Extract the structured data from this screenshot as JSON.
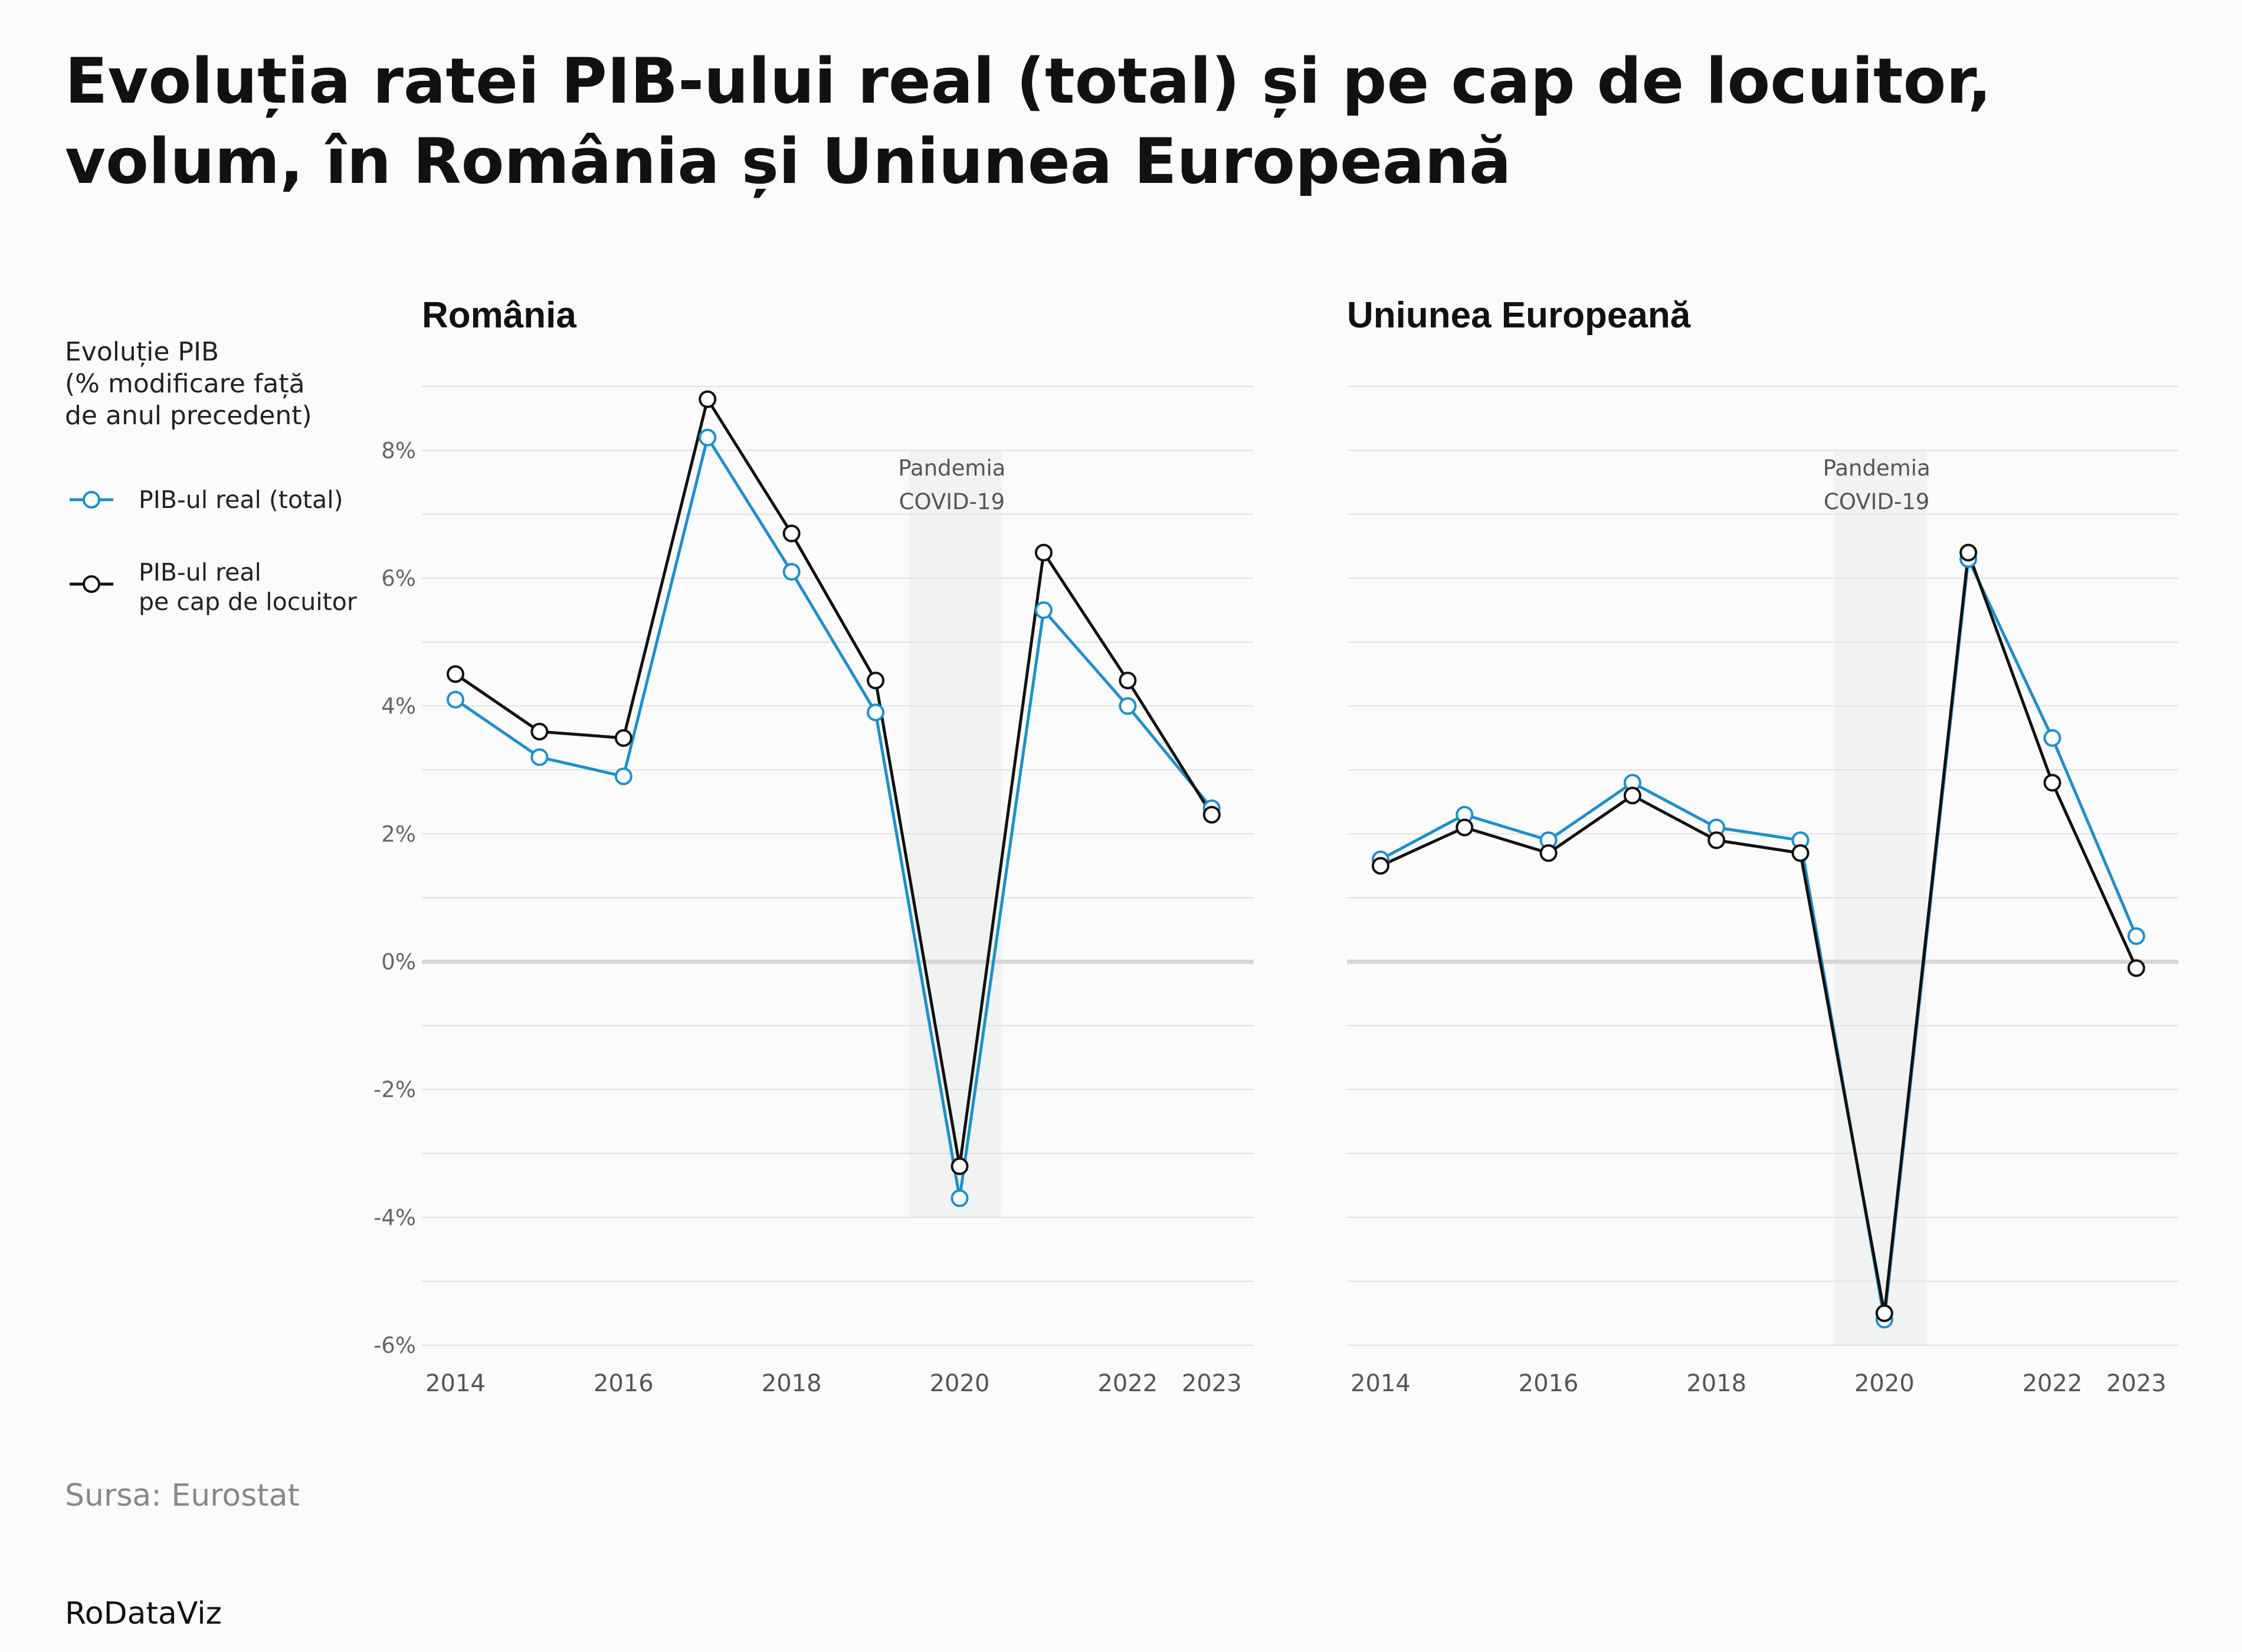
{
  "title": "Evoluția ratei PIB-ului real (total) și pe cap de locuitor, volum, în România și Uniunea Europeană",
  "legend": {
    "title_lines": [
      "Evoluție PIB",
      "(% modificare față",
      "de anul precedent)"
    ],
    "items": [
      {
        "lines": [
          "PIB-ul real (total)"
        ],
        "color": "#1f8fc8"
      },
      {
        "lines": [
          "PIB-ul real",
          "pe cap de locuitor"
        ],
        "color": "#111111"
      }
    ]
  },
  "source": "Sursa: Eurostat",
  "brand": "RoDataViz",
  "annotation_lines": [
    "Pandemia",
    "COVID-19"
  ],
  "chart_data": {
    "type": "line",
    "ylim": [
      -6,
      9
    ],
    "yticks": [
      -6,
      -4,
      -2,
      0,
      2,
      4,
      6,
      8
    ],
    "ytick_labels": [
      "-6%",
      "-4%",
      "-2%",
      "0%",
      "2%",
      "4%",
      "6%",
      "8%"
    ],
    "xlim": [
      2013.6,
      2023.5
    ],
    "xticks": [
      2014,
      2016,
      2018,
      2020,
      2022,
      2023
    ],
    "xtick_labels": [
      "2014",
      "2016",
      "2018",
      "2020",
      "2022",
      "2023"
    ],
    "x": [
      2014,
      2015,
      2016,
      2017,
      2018,
      2019,
      2020,
      2021,
      2022,
      2023
    ],
    "highlight_band": {
      "x": [
        2019.4,
        2020.5
      ]
    },
    "panels": [
      {
        "title": "România",
        "band_ymin": -4,
        "series": [
          {
            "name": "PIB-ul real (total)",
            "color": "#1f8fc8",
            "values": [
              4.1,
              3.2,
              2.9,
              8.2,
              6.1,
              3.9,
              -3.7,
              5.5,
              4.0,
              2.4
            ]
          },
          {
            "name": "PIB-ul real pe cap de locuitor",
            "color": "#111111",
            "values": [
              4.5,
              3.6,
              3.5,
              8.8,
              6.7,
              4.4,
              -3.2,
              6.4,
              4.4,
              2.3
            ]
          }
        ]
      },
      {
        "title": "Uniunea Europeană",
        "band_ymin": -6,
        "series": [
          {
            "name": "PIB-ul real (total)",
            "color": "#1f8fc8",
            "values": [
              1.6,
              2.3,
              1.9,
              2.8,
              2.1,
              1.9,
              -5.6,
              6.3,
              3.5,
              0.4
            ]
          },
          {
            "name": "PIB-ul real pe cap de locuitor",
            "color": "#111111",
            "values": [
              1.5,
              2.1,
              1.7,
              2.6,
              1.9,
              1.7,
              -5.5,
              6.4,
              2.8,
              -0.1
            ]
          }
        ]
      }
    ]
  }
}
